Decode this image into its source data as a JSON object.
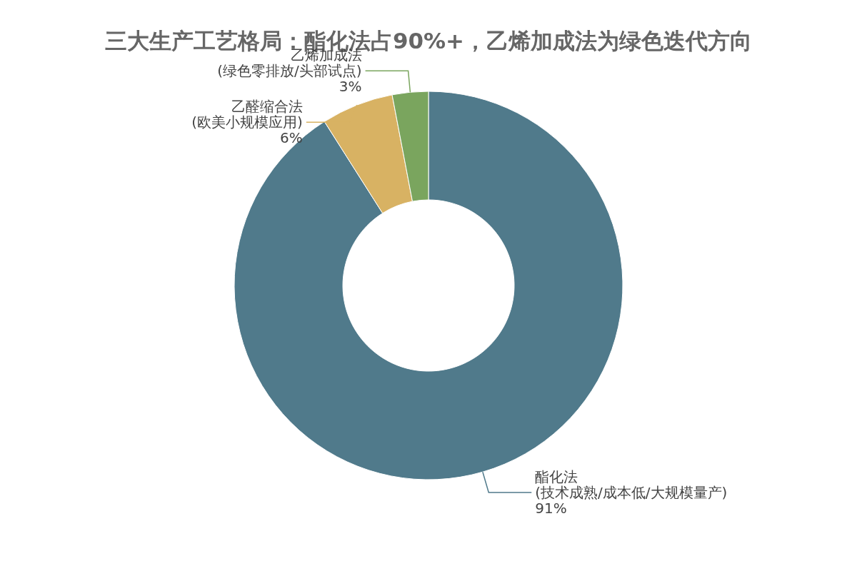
{
  "chart_data": {
    "type": "donut",
    "title": "三大生产工艺格局：酯化法占90%+，乙烯加成法为绿色迭代方向",
    "categories": [
      "酯化法\n(技术成熟/成本低/大规模量产)",
      "乙醛缩合法\n(欧美小规模应用)",
      "乙烯加成法\n(绿色零排放/头部试点)"
    ],
    "values": [
      91,
      6,
      3
    ],
    "colors": [
      "#507a8b",
      "#d8b263",
      "#7aa55e"
    ],
    "value_labels": [
      "91%",
      "6%",
      "3%"
    ]
  }
}
